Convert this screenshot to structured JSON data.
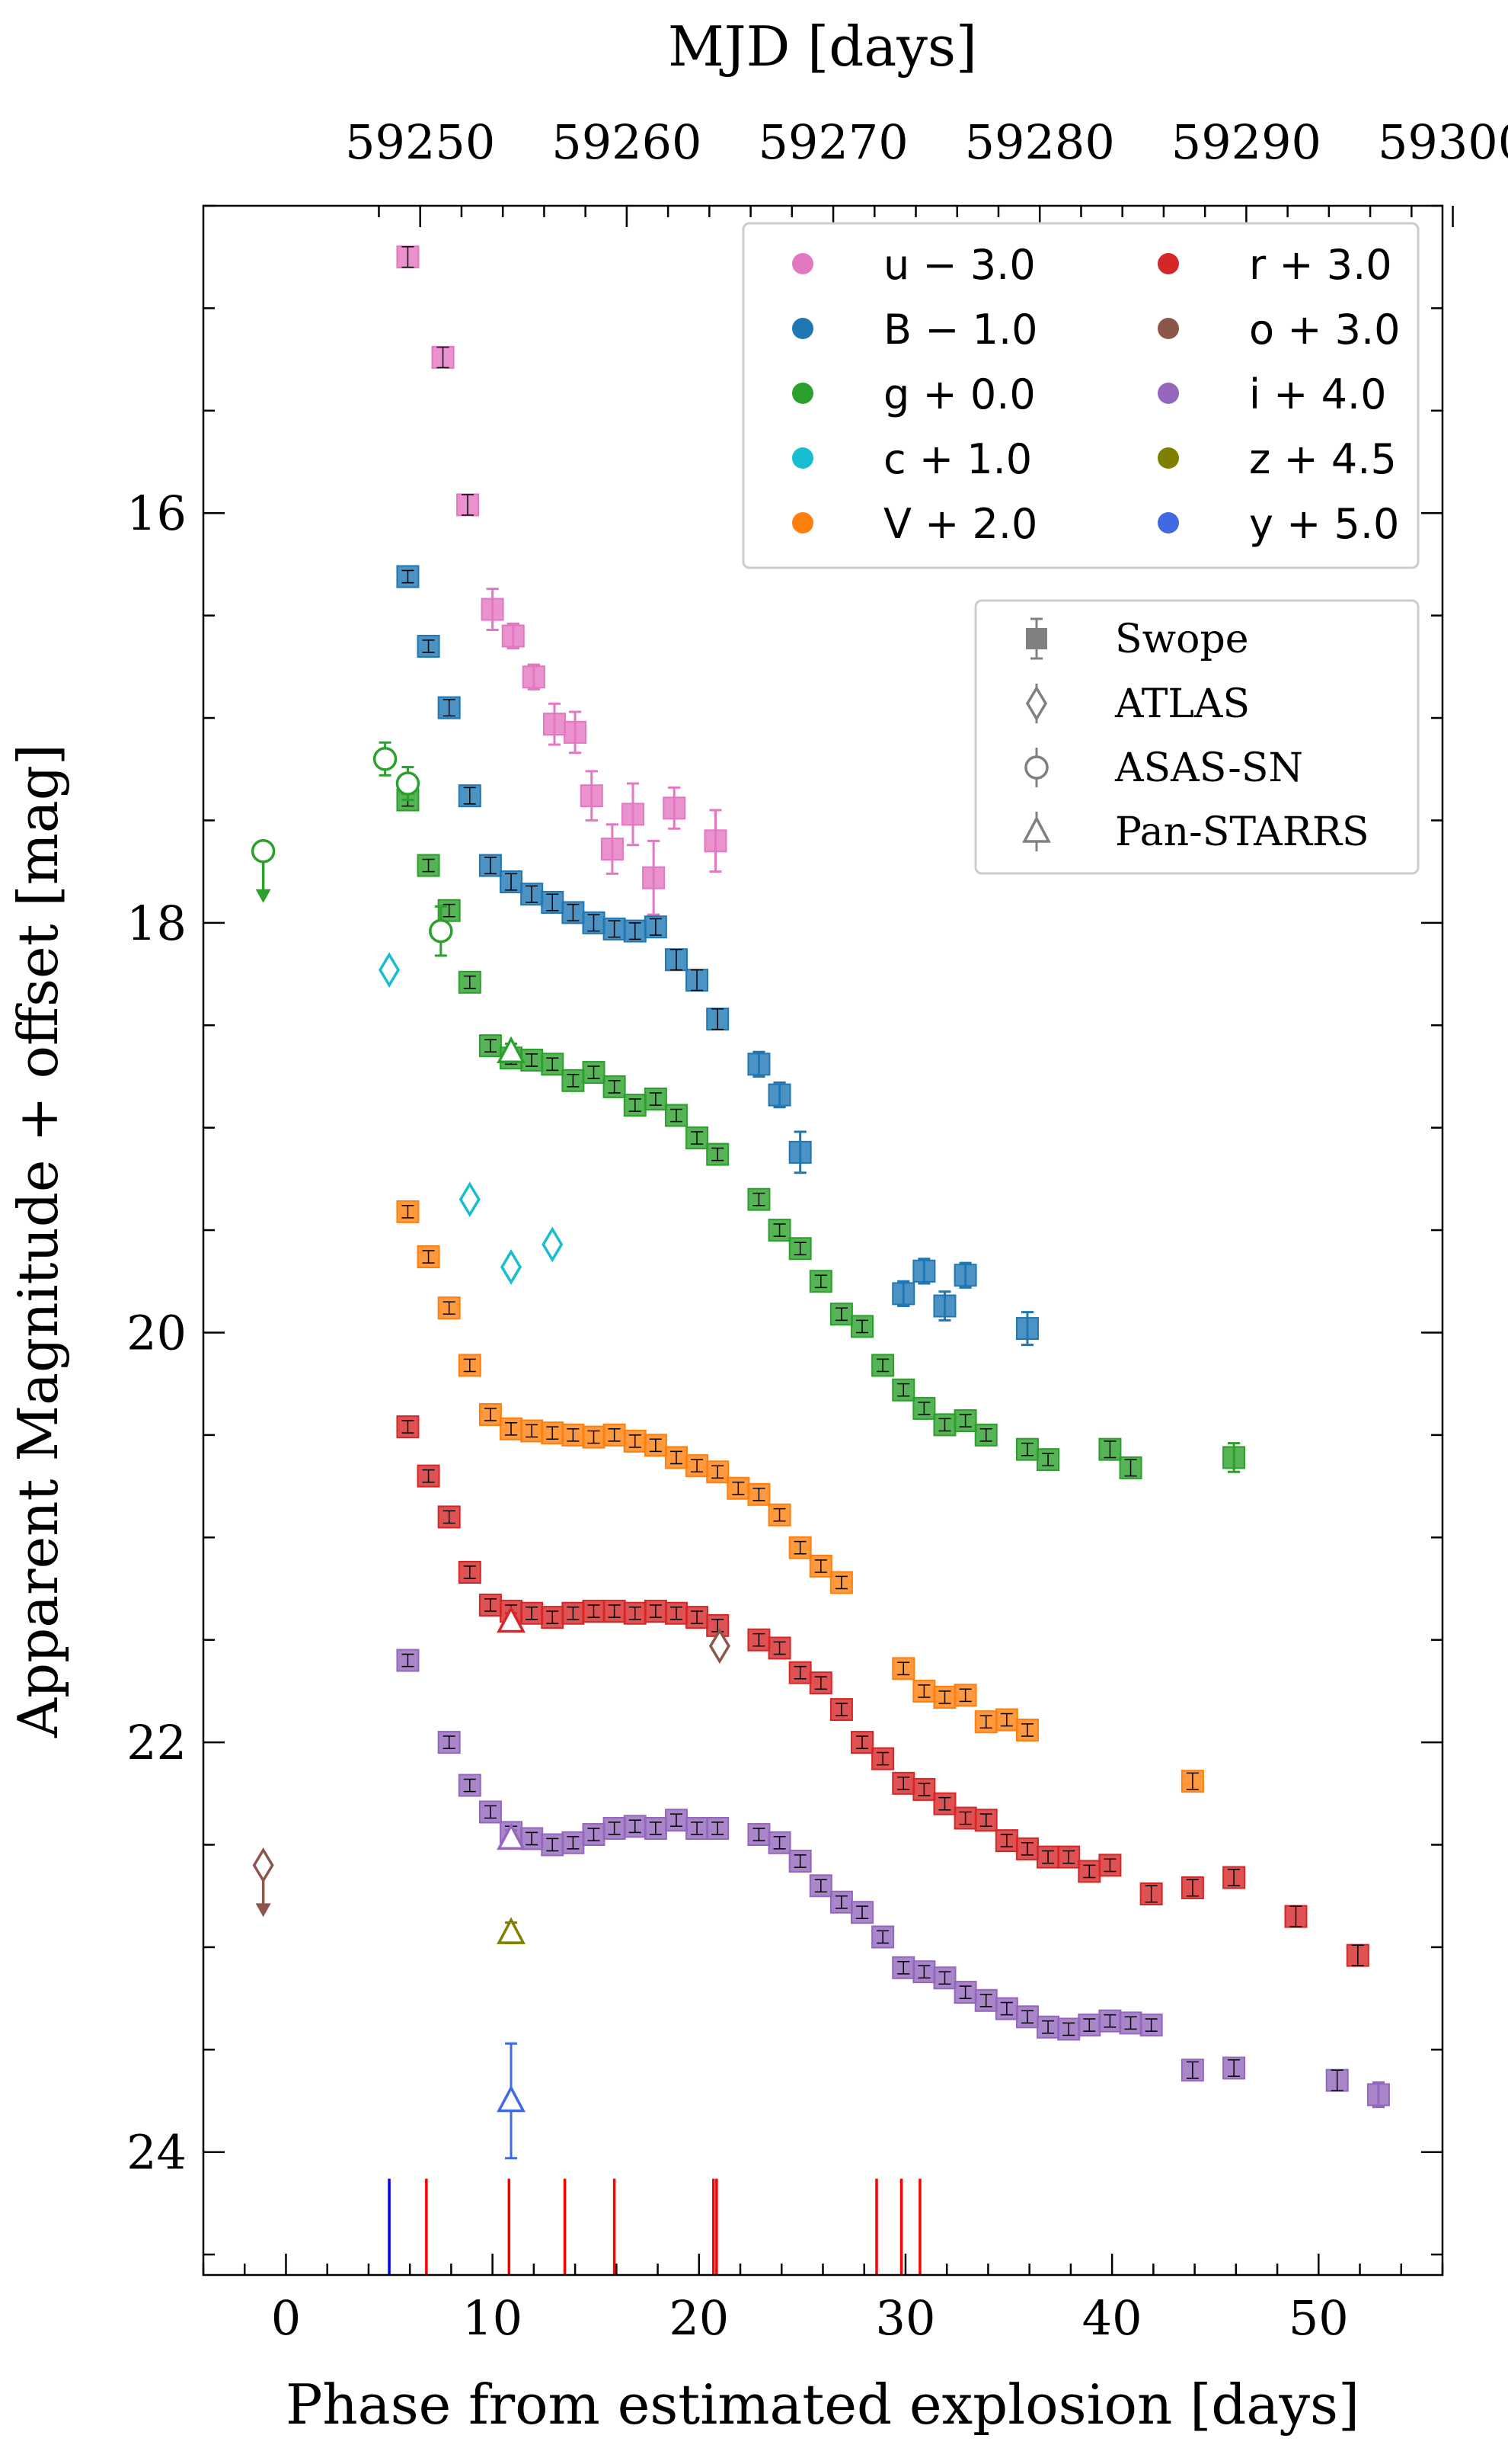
{
  "chart_data": {
    "type": "scatter",
    "xlabel": "Phase from estimated explosion [days]",
    "ylabel": "Apparent Magnitude + offset [mag]",
    "top_xlabel": "MJD [days]",
    "xlim": [
      -4,
      56
    ],
    "ylim": [
      24.6,
      14.5
    ],
    "y_inverted": true,
    "x_ticks": [
      0,
      10,
      20,
      30,
      40,
      50
    ],
    "x_tick_labels": [
      "0",
      "10",
      "20",
      "30",
      "40",
      "50"
    ],
    "y_ticks": [
      16,
      18,
      20,
      22,
      24
    ],
    "y_tick_labels": [
      "16",
      "18",
      "20",
      "22",
      "24"
    ],
    "mjd_offset": 59243.5,
    "top_ticks": [
      59250,
      59260,
      59270,
      59280,
      59290,
      59300
    ],
    "top_tick_labels": [
      "59250",
      "59260",
      "59270",
      "59280",
      "59290",
      "59300"
    ],
    "legend_bands_position": "top-right",
    "legend_surveys_position": "upper-right",
    "bands": [
      {
        "key": "u",
        "label": "u − 3.0",
        "color": "#e377c2"
      },
      {
        "key": "B",
        "label": "B − 1.0",
        "color": "#1f77b4"
      },
      {
        "key": "g",
        "label": "g + 0.0",
        "color": "#2ca02c"
      },
      {
        "key": "c",
        "label": "c + 1.0",
        "color": "#17becf"
      },
      {
        "key": "V",
        "label": "V + 2.0",
        "color": "#ff7f0e"
      },
      {
        "key": "r",
        "label": "r + 3.0",
        "color": "#d62728"
      },
      {
        "key": "o",
        "label": "o + 3.0",
        "color": "#8c564b"
      },
      {
        "key": "i",
        "label": "i + 4.0",
        "color": "#9467bd"
      },
      {
        "key": "z",
        "label": "z + 4.5",
        "color": "#808000"
      },
      {
        "key": "y",
        "label": "y + 5.0",
        "color": "#4169e1"
      }
    ],
    "surveys": [
      "Swope",
      "ATLAS",
      "ASAS-SN",
      "Pan-STARRS"
    ],
    "swope": {
      "u": [
        [
          5.9,
          14.75,
          0.05
        ],
        [
          7.6,
          15.24,
          0.05
        ],
        [
          8.8,
          15.96,
          0.05
        ],
        [
          10.0,
          16.47,
          0.1
        ],
        [
          11.0,
          16.6,
          0.06
        ],
        [
          12.0,
          16.8,
          0.06
        ],
        [
          13.0,
          17.03,
          0.1
        ],
        [
          14.0,
          17.07,
          0.1
        ],
        [
          14.8,
          17.38,
          0.12
        ],
        [
          15.8,
          17.64,
          0.12
        ],
        [
          16.8,
          17.47,
          0.15
        ],
        [
          17.8,
          17.78,
          0.18
        ],
        [
          18.8,
          17.44,
          0.1
        ],
        [
          20.8,
          17.6,
          0.15
        ]
      ],
      "B": [
        [
          5.9,
          16.31,
          0.03
        ],
        [
          6.9,
          16.65,
          0.03
        ],
        [
          7.9,
          16.95,
          0.04
        ],
        [
          8.9,
          17.38,
          0.04
        ],
        [
          9.9,
          17.72,
          0.04
        ],
        [
          10.9,
          17.8,
          0.04
        ],
        [
          11.9,
          17.86,
          0.04
        ],
        [
          12.9,
          17.9,
          0.04
        ],
        [
          13.9,
          17.95,
          0.04
        ],
        [
          14.9,
          18.0,
          0.04
        ],
        [
          15.9,
          18.03,
          0.04
        ],
        [
          16.9,
          18.04,
          0.04
        ],
        [
          17.9,
          18.02,
          0.04
        ],
        [
          18.9,
          18.18,
          0.05
        ],
        [
          19.9,
          18.28,
          0.05
        ],
        [
          20.9,
          18.47,
          0.05
        ],
        [
          22.9,
          18.69,
          0.06
        ],
        [
          23.9,
          18.84,
          0.06
        ],
        [
          24.9,
          19.12,
          0.1
        ],
        [
          29.9,
          19.81,
          0.06
        ],
        [
          30.9,
          19.7,
          0.06
        ],
        [
          31.9,
          19.87,
          0.07
        ],
        [
          32.9,
          19.72,
          0.06
        ],
        [
          35.9,
          19.98,
          0.08
        ]
      ],
      "g": [
        [
          5.9,
          17.4,
          0.03
        ],
        [
          6.9,
          17.72,
          0.03
        ],
        [
          7.9,
          17.94,
          0.03
        ],
        [
          8.9,
          18.29,
          0.03
        ],
        [
          9.9,
          18.6,
          0.03
        ],
        [
          10.9,
          18.66,
          0.03
        ],
        [
          11.9,
          18.67,
          0.03
        ],
        [
          12.9,
          18.69,
          0.03
        ],
        [
          13.9,
          18.77,
          0.03
        ],
        [
          14.9,
          18.73,
          0.03
        ],
        [
          15.9,
          18.8,
          0.03
        ],
        [
          16.9,
          18.89,
          0.03
        ],
        [
          17.9,
          18.86,
          0.03
        ],
        [
          18.9,
          18.94,
          0.03
        ],
        [
          19.9,
          19.05,
          0.03
        ],
        [
          20.9,
          19.13,
          0.03
        ],
        [
          22.9,
          19.35,
          0.03
        ],
        [
          23.9,
          19.5,
          0.03
        ],
        [
          24.9,
          19.59,
          0.03
        ],
        [
          25.9,
          19.75,
          0.03
        ],
        [
          26.9,
          19.91,
          0.03
        ],
        [
          27.9,
          19.97,
          0.03
        ],
        [
          28.9,
          20.16,
          0.03
        ],
        [
          29.9,
          20.28,
          0.03
        ],
        [
          30.9,
          20.37,
          0.03
        ],
        [
          31.9,
          20.45,
          0.03
        ],
        [
          32.9,
          20.43,
          0.03
        ],
        [
          33.9,
          20.5,
          0.03
        ],
        [
          35.9,
          20.57,
          0.03
        ],
        [
          36.9,
          20.62,
          0.03
        ],
        [
          39.9,
          20.57,
          0.04
        ],
        [
          40.9,
          20.66,
          0.04
        ],
        [
          45.9,
          20.61,
          0.07
        ]
      ],
      "V": [
        [
          5.9,
          19.41,
          0.03
        ],
        [
          6.9,
          19.63,
          0.03
        ],
        [
          7.9,
          19.88,
          0.03
        ],
        [
          8.9,
          20.16,
          0.03
        ],
        [
          9.9,
          20.4,
          0.03
        ],
        [
          10.9,
          20.47,
          0.03
        ],
        [
          11.9,
          20.48,
          0.03
        ],
        [
          12.9,
          20.49,
          0.03
        ],
        [
          13.9,
          20.5,
          0.03
        ],
        [
          14.9,
          20.51,
          0.03
        ],
        [
          15.9,
          20.5,
          0.03
        ],
        [
          16.9,
          20.53,
          0.03
        ],
        [
          17.9,
          20.55,
          0.03
        ],
        [
          18.9,
          20.61,
          0.03
        ],
        [
          19.9,
          20.65,
          0.03
        ],
        [
          20.9,
          20.68,
          0.03
        ],
        [
          21.9,
          20.76,
          0.03
        ],
        [
          22.9,
          20.79,
          0.03
        ],
        [
          23.9,
          20.89,
          0.03
        ],
        [
          24.9,
          21.05,
          0.03
        ],
        [
          25.9,
          21.14,
          0.03
        ],
        [
          26.9,
          21.22,
          0.03
        ],
        [
          29.9,
          21.64,
          0.03
        ],
        [
          30.9,
          21.75,
          0.03
        ],
        [
          31.9,
          21.78,
          0.03
        ],
        [
          32.9,
          21.77,
          0.03
        ],
        [
          33.9,
          21.9,
          0.03
        ],
        [
          34.9,
          21.89,
          0.03
        ],
        [
          35.9,
          21.94,
          0.03
        ],
        [
          43.9,
          22.19,
          0.04
        ]
      ],
      "r": [
        [
          5.9,
          20.46,
          0.03
        ],
        [
          6.9,
          20.7,
          0.03
        ],
        [
          7.9,
          20.9,
          0.03
        ],
        [
          8.9,
          21.17,
          0.03
        ],
        [
          9.9,
          21.33,
          0.03
        ],
        [
          10.9,
          21.36,
          0.03
        ],
        [
          11.9,
          21.37,
          0.03
        ],
        [
          12.9,
          21.39,
          0.03
        ],
        [
          13.9,
          21.37,
          0.03
        ],
        [
          14.9,
          21.36,
          0.03
        ],
        [
          15.9,
          21.36,
          0.03
        ],
        [
          16.9,
          21.37,
          0.03
        ],
        [
          17.9,
          21.36,
          0.03
        ],
        [
          18.9,
          21.37,
          0.03
        ],
        [
          19.9,
          21.39,
          0.03
        ],
        [
          20.9,
          21.43,
          0.03
        ],
        [
          22.9,
          21.5,
          0.03
        ],
        [
          23.9,
          21.54,
          0.03
        ],
        [
          24.9,
          21.66,
          0.03
        ],
        [
          25.9,
          21.71,
          0.03
        ],
        [
          26.9,
          21.84,
          0.03
        ],
        [
          27.9,
          22.0,
          0.03
        ],
        [
          28.9,
          22.08,
          0.03
        ],
        [
          29.9,
          22.2,
          0.03
        ],
        [
          30.9,
          22.23,
          0.03
        ],
        [
          31.9,
          22.3,
          0.03
        ],
        [
          32.9,
          22.37,
          0.03
        ],
        [
          33.9,
          22.38,
          0.03
        ],
        [
          34.9,
          22.48,
          0.03
        ],
        [
          35.9,
          22.52,
          0.03
        ],
        [
          36.9,
          22.56,
          0.03
        ],
        [
          37.9,
          22.56,
          0.03
        ],
        [
          38.9,
          22.63,
          0.03
        ],
        [
          39.9,
          22.6,
          0.03
        ],
        [
          41.9,
          22.74,
          0.04
        ],
        [
          43.9,
          22.71,
          0.04
        ],
        [
          45.9,
          22.66,
          0.04
        ],
        [
          48.9,
          22.85,
          0.05
        ],
        [
          51.9,
          23.04,
          0.05
        ]
      ],
      "i": [
        [
          5.9,
          21.6,
          0.03
        ],
        [
          7.9,
          22.0,
          0.03
        ],
        [
          8.9,
          22.21,
          0.03
        ],
        [
          9.9,
          22.34,
          0.03
        ],
        [
          10.9,
          22.44,
          0.03
        ],
        [
          11.9,
          22.47,
          0.03
        ],
        [
          12.9,
          22.5,
          0.03
        ],
        [
          13.9,
          22.49,
          0.03
        ],
        [
          14.9,
          22.45,
          0.03
        ],
        [
          15.9,
          22.42,
          0.03
        ],
        [
          16.9,
          22.41,
          0.03
        ],
        [
          17.9,
          22.42,
          0.03
        ],
        [
          18.9,
          22.38,
          0.03
        ],
        [
          19.9,
          22.42,
          0.03
        ],
        [
          20.9,
          22.42,
          0.03
        ],
        [
          22.9,
          22.45,
          0.03
        ],
        [
          23.9,
          22.49,
          0.03
        ],
        [
          24.9,
          22.58,
          0.03
        ],
        [
          25.9,
          22.7,
          0.03
        ],
        [
          26.9,
          22.78,
          0.03
        ],
        [
          27.9,
          22.83,
          0.03
        ],
        [
          28.9,
          22.95,
          0.03
        ],
        [
          29.9,
          23.1,
          0.03
        ],
        [
          30.9,
          23.12,
          0.03
        ],
        [
          31.9,
          23.15,
          0.03
        ],
        [
          32.9,
          23.22,
          0.03
        ],
        [
          33.9,
          23.26,
          0.03
        ],
        [
          34.9,
          23.3,
          0.03
        ],
        [
          35.9,
          23.34,
          0.03
        ],
        [
          36.9,
          23.39,
          0.03
        ],
        [
          37.9,
          23.4,
          0.03
        ],
        [
          38.9,
          23.38,
          0.03
        ],
        [
          39.9,
          23.36,
          0.03
        ],
        [
          40.9,
          23.37,
          0.03
        ],
        [
          41.9,
          23.38,
          0.03
        ],
        [
          43.9,
          23.6,
          0.04
        ],
        [
          45.9,
          23.59,
          0.04
        ],
        [
          50.9,
          23.65,
          0.05
        ],
        [
          52.9,
          23.72,
          0.06
        ]
      ]
    },
    "atlas": [
      {
        "band": "c",
        "x": 5.0,
        "y": 18.23
      },
      {
        "band": "c",
        "x": 8.9,
        "y": 19.35
      },
      {
        "band": "c",
        "x": 10.9,
        "y": 19.68
      },
      {
        "band": "c",
        "x": 12.9,
        "y": 19.57
      },
      {
        "band": "o",
        "x": 21.0,
        "y": 21.53
      },
      {
        "band": "o",
        "x": -1.1,
        "y": 22.6,
        "upper_limit": true
      }
    ],
    "asassn": [
      {
        "band": "g",
        "x": -1.1,
        "y": 17.65,
        "upper_limit": true
      },
      {
        "band": "g",
        "x": 4.8,
        "y": 17.2,
        "err": 0.08
      },
      {
        "band": "g",
        "x": 5.9,
        "y": 17.32,
        "err": 0.08
      },
      {
        "band": "g",
        "x": 7.5,
        "y": 18.04,
        "err": 0.12
      }
    ],
    "panstarrs": [
      {
        "band": "g",
        "x": 10.9,
        "y": 18.63,
        "err": 0.04
      },
      {
        "band": "r",
        "x": 10.9,
        "y": 21.41,
        "err": 0.04
      },
      {
        "band": "i",
        "x": 10.9,
        "y": 22.47,
        "err": 0.04
      },
      {
        "band": "z",
        "x": 10.9,
        "y": 22.93,
        "err": 0.05
      },
      {
        "band": "y",
        "x": 10.9,
        "y": 23.75,
        "err": 0.28
      }
    ],
    "spectra_epochs": [
      {
        "x": 5.0,
        "color": "#0000ff"
      },
      {
        "x": 6.8,
        "color": "#ff0000"
      },
      {
        "x": 10.8,
        "color": "#ff0000"
      },
      {
        "x": 13.5,
        "color": "#ff0000"
      },
      {
        "x": 15.9,
        "color": "#ff0000"
      },
      {
        "x": 20.7,
        "color": "#ff0000"
      },
      {
        "x": 20.85,
        "color": "#ff0000"
      },
      {
        "x": 28.6,
        "color": "#ff0000"
      },
      {
        "x": 29.8,
        "color": "#ff0000"
      },
      {
        "x": 30.7,
        "color": "#ff0000"
      }
    ]
  }
}
